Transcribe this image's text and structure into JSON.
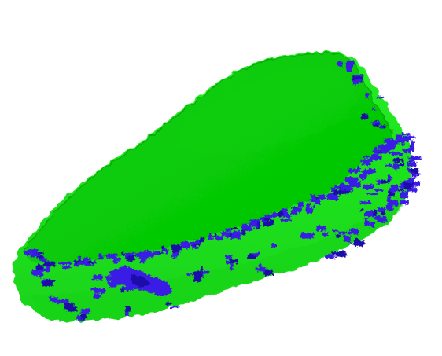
{
  "scene": {
    "subject": "3d-mesh-render",
    "colors": {
      "background": "#ffffff",
      "top_face": "#00c400",
      "top_face_highlight": "#0fd10f",
      "side_face": "#22ee22",
      "side_face_shadow": "#19d419",
      "edge_patch": "#3a1ae6",
      "edge_patch_dark": "#1b0aa8",
      "outline": "#0a7a0a"
    }
  }
}
